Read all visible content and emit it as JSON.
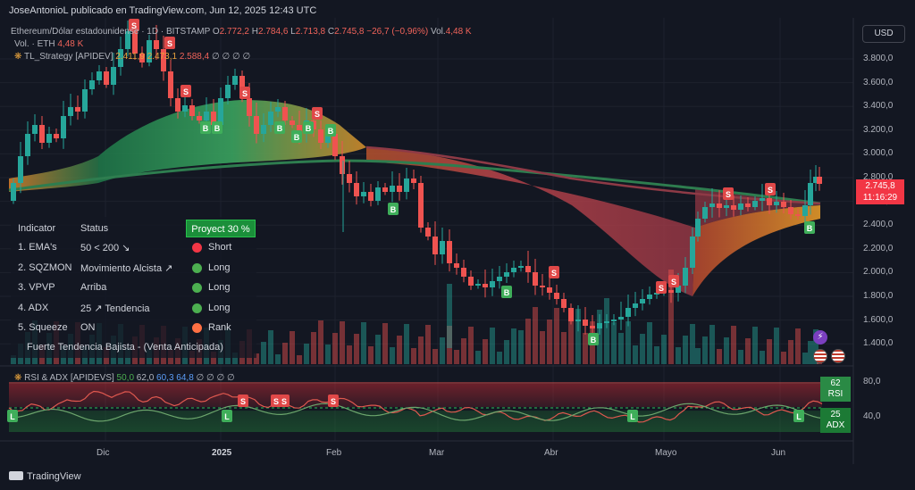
{
  "header": {
    "published": "JoseAntonioL publicado en TradingView.com, Jun 12, 2025 12:43 UTC"
  },
  "legend": {
    "symbol": "Ethereum/Dólar estadounidense · 1D · BITSTAMP",
    "o_label": "O",
    "o_value": "2.772,2",
    "h_label": "H",
    "h_value": "2.784,6",
    "l_label": "L",
    "l_value": "2.713,8",
    "c_label": "C",
    "c_value": "2.745,8",
    "change": "−26,7 (−0,96%)",
    "vol_label": "Vol.",
    "vol_value": "4,48 K",
    "vol_eth_label": "Vol. · ETH",
    "vol_eth_value": "4,48 K",
    "strategy_label": "TL_Strategy [APIDEV]",
    "strategy_v1": "2.411,9",
    "strategy_v2": "2.473,1",
    "strategy_v3": "2.588,4",
    "strategy_tail": "∅ ∅ ∅ ∅"
  },
  "currency_button": "USD",
  "price_axis": {
    "ticks": [
      "3.800,0",
      "3.600,0",
      "3.400,0",
      "3.200,0",
      "3.000,0",
      "2.800,0",
      "2.600,0",
      "2.400,0",
      "2.200,0",
      "2.000,0",
      "1.800,0",
      "1.600,0",
      "1.400,0"
    ],
    "current_price": "2.745,8",
    "countdown": "11:16:29",
    "current_color": "#f23645"
  },
  "indicator_axis": {
    "ticks": [
      "80,0",
      "40,0"
    ],
    "rsi_value": "62",
    "rsi_label": "RSI",
    "adx_value": "25",
    "adx_label": "ADX"
  },
  "time_axis": {
    "labels": [
      "Dic",
      "2025",
      "Feb",
      "Mar",
      "Abr",
      "Mayo",
      "Jun"
    ]
  },
  "status_table": {
    "col_indicator": "Indicator",
    "col_status": "Status",
    "project": "Proyect 30 %",
    "rows": [
      {
        "name": "1. EMA's",
        "status": "50 < 200 ↘",
        "signal": "Short",
        "color": "#f23645"
      },
      {
        "name": "2. SQZMON",
        "status": "Movimiento Alcista ↗",
        "signal": "Long",
        "color": "#4caf50"
      },
      {
        "name": "3. VPVP",
        "status": "Arriba",
        "signal": "Long",
        "color": "#4caf50"
      },
      {
        "name": "4. ADX",
        "status": "25 ↗ Tendencia",
        "signal": "Long",
        "color": "#4caf50"
      },
      {
        "name": "5. Squeeze",
        "status": "ON",
        "signal": "Rank",
        "color": "#ff7043"
      }
    ],
    "summary": "Fuerte Tendencia Bajista - (Venta Anticipada)"
  },
  "rsi_legend": {
    "label": "RSI & ADX [APIDEVS]",
    "v1": "50,0",
    "v2": "62,0",
    "v3": "60,3",
    "v4": "64,8",
    "tail": "∅ ∅ ∅ ∅"
  },
  "markers": {
    "sell": "S",
    "buy": "B",
    "long": "L"
  },
  "footer": {
    "brand": "TradingView"
  },
  "colors": {
    "up": "#26a69a",
    "down": "#ef5350",
    "background": "#131722",
    "ema_fast": "#8e3a46",
    "ema_slow": "#2e7d4f"
  }
}
